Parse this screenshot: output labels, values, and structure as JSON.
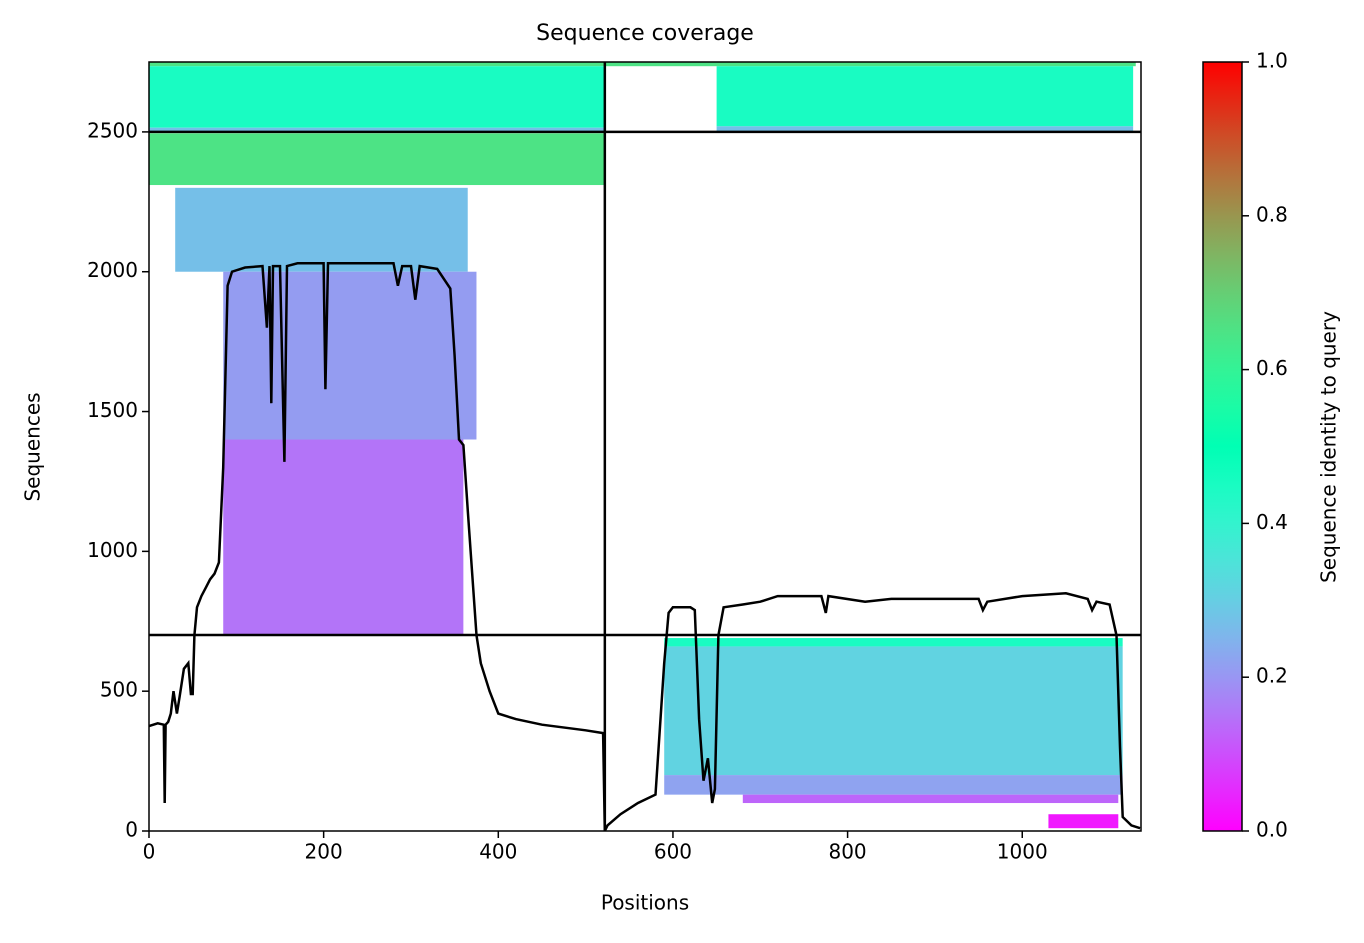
{
  "chart_data": {
    "type": "coverage",
    "title": "Sequence coverage",
    "x_label": "Positions",
    "y_label": "Sequences",
    "xlim": [
      0,
      1136
    ],
    "ylim": [
      0,
      2750
    ],
    "xticks": [
      0,
      200,
      400,
      600,
      800,
      1000
    ],
    "yticks": [
      0,
      500,
      1000,
      1500,
      2000,
      2500
    ],
    "colormap": "rainbow",
    "colorbar": {
      "label": "Sequence identity to query",
      "lim": [
        0,
        1
      ],
      "ticks": [
        {
          "value": 0,
          "label": "0.0"
        },
        {
          "value": 0.2,
          "label": "0.2"
        },
        {
          "value": 0.4,
          "label": "0.4"
        },
        {
          "value": 0.6,
          "label": "0.6"
        },
        {
          "value": 0.8,
          "label": "0.8"
        },
        {
          "value": 1,
          "label": "1.0"
        }
      ]
    },
    "blocks": [
      {
        "x": [
          0,
          522
        ],
        "y": [
          2735,
          2750
        ],
        "identity": 0.65
      },
      {
        "x": [
          0,
          522
        ],
        "y": [
          2515,
          2735
        ],
        "identity": 0.45
      },
      {
        "x": [
          0,
          522
        ],
        "y": [
          2500,
          2515
        ],
        "identity": 0.27
      },
      {
        "x": [
          522,
          1130
        ],
        "y": [
          2735,
          2750
        ],
        "identity": 0.65
      },
      {
        "x": [
          650,
          1127
        ],
        "y": [
          2520,
          2735
        ],
        "identity": 0.45
      },
      {
        "x": [
          650,
          1127
        ],
        "y": [
          2500,
          2520
        ],
        "identity": 0.27
      },
      {
        "x": [
          0,
          522
        ],
        "y": [
          2310,
          2495
        ],
        "identity": 0.65
      },
      {
        "x": [
          30,
          365
        ],
        "y": [
          2000,
          2300
        ],
        "identity": 0.27
      },
      {
        "x": [
          85,
          375
        ],
        "y": [
          1400,
          2000
        ],
        "identity": 0.21
      },
      {
        "x": [
          85,
          360
        ],
        "y": [
          700,
          1400
        ],
        "identity": 0.15
      },
      {
        "x": [
          590,
          1115
        ],
        "y": [
          660,
          690
        ],
        "identity": 0.45
      },
      {
        "x": [
          590,
          1115
        ],
        "y": [
          200,
          660
        ],
        "identity": 0.31
      },
      {
        "x": [
          590,
          1115
        ],
        "y": [
          130,
          200
        ],
        "identity": 0.22
      },
      {
        "x": [
          680,
          1110
        ],
        "y": [
          100,
          130
        ],
        "identity": 0.13
      },
      {
        "x": [
          1030,
          1110
        ],
        "y": [
          10,
          60
        ],
        "identity": 0.03
      }
    ],
    "dividers": {
      "x": [
        522
      ],
      "y": [
        701,
        2500
      ]
    },
    "coverage": {
      "color": "#000000",
      "x": [
        0,
        10,
        17,
        18,
        19,
        22,
        25,
        28,
        32,
        35,
        40,
        45,
        48,
        50,
        52,
        55,
        60,
        65,
        70,
        75,
        80,
        85,
        90,
        95,
        110,
        130,
        135,
        138,
        140,
        142,
        150,
        155,
        158,
        170,
        200,
        202,
        205,
        280,
        285,
        290,
        300,
        305,
        310,
        330,
        345,
        350,
        355,
        360,
        365,
        375,
        380,
        390,
        400,
        420,
        450,
        500,
        520,
        522,
        525,
        540,
        560,
        580,
        590,
        595,
        600,
        620,
        625,
        630,
        635,
        640,
        645,
        648,
        652,
        658,
        680,
        700,
        720,
        770,
        775,
        778,
        820,
        850,
        950,
        955,
        960,
        1000,
        1050,
        1075,
        1080,
        1085,
        1100,
        1108,
        1112,
        1115,
        1125,
        1135
      ],
      "y": [
        375,
        385,
        380,
        100,
        380,
        390,
        420,
        500,
        420,
        480,
        580,
        600,
        490,
        490,
        700,
        800,
        840,
        870,
        900,
        920,
        960,
        1300,
        1950,
        2000,
        2015,
        2020,
        1800,
        2020,
        1530,
        2020,
        2020,
        1320,
        2020,
        2030,
        2030,
        1580,
        2030,
        2030,
        1950,
        2020,
        2020,
        1900,
        2020,
        2010,
        1940,
        1700,
        1400,
        1380,
        1150,
        700,
        600,
        500,
        420,
        400,
        380,
        360,
        350,
        0,
        20,
        60,
        100,
        130,
        600,
        780,
        800,
        800,
        790,
        400,
        180,
        260,
        100,
        150,
        700,
        800,
        810,
        820,
        840,
        840,
        780,
        840,
        820,
        830,
        830,
        790,
        820,
        840,
        850,
        830,
        790,
        820,
        810,
        700,
        300,
        50,
        20,
        10
      ]
    }
  }
}
